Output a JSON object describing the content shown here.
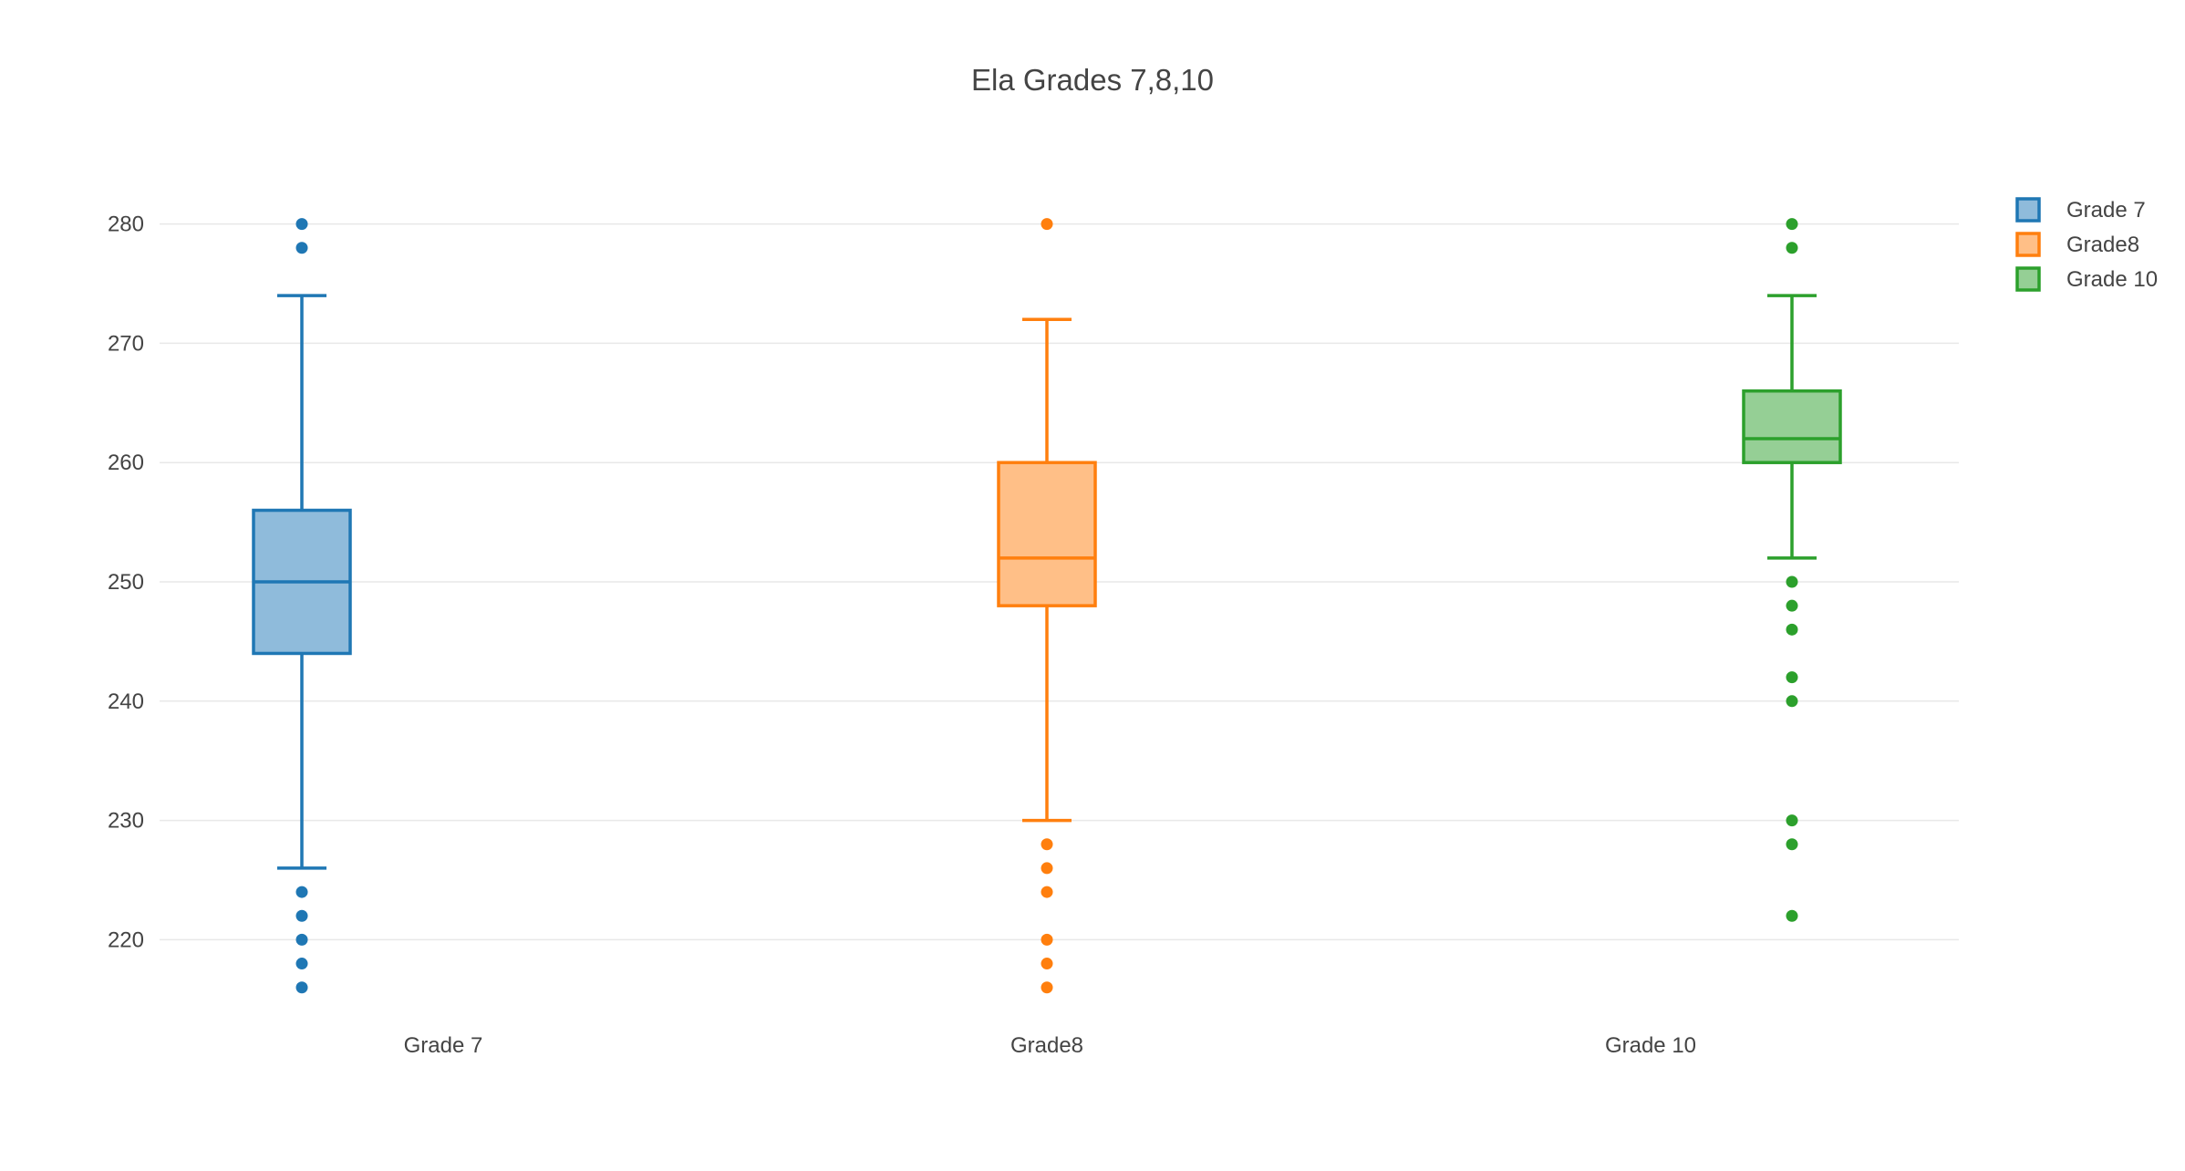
{
  "chart_data": {
    "type": "box",
    "title": "Ela Grades 7,8,10",
    "xlabel": "",
    "ylabel": "",
    "ylim": [
      214,
      286
    ],
    "yticks": [
      220,
      230,
      240,
      250,
      260,
      270,
      280
    ],
    "grid": true,
    "legend_position": "top-right",
    "categories": [
      "Grade 7",
      "Grade8",
      "Grade 10"
    ],
    "series": [
      {
        "name": "Grade 7",
        "color": "#1f77b4",
        "fill": "#8fbbdb",
        "lower_fence": 226,
        "q1": 244,
        "median": 250,
        "q3": 256,
        "upper_fence": 274,
        "outliers": [
          280,
          278,
          224,
          222,
          220,
          218,
          216
        ]
      },
      {
        "name": "Grade8",
        "color": "#ff7f0e",
        "fill": "#ffbf87",
        "lower_fence": 230,
        "q1": 248,
        "median": 252,
        "q3": 260,
        "upper_fence": 272,
        "outliers": [
          280,
          228,
          226,
          224,
          220,
          218,
          216
        ]
      },
      {
        "name": "Grade 10",
        "color": "#2ca02c",
        "fill": "#95cf95",
        "lower_fence": 252,
        "q1": 260,
        "median": 262,
        "q3": 266,
        "upper_fence": 274,
        "outliers": [
          280,
          278,
          250,
          248,
          246,
          242,
          240,
          230,
          228,
          222
        ]
      }
    ]
  }
}
